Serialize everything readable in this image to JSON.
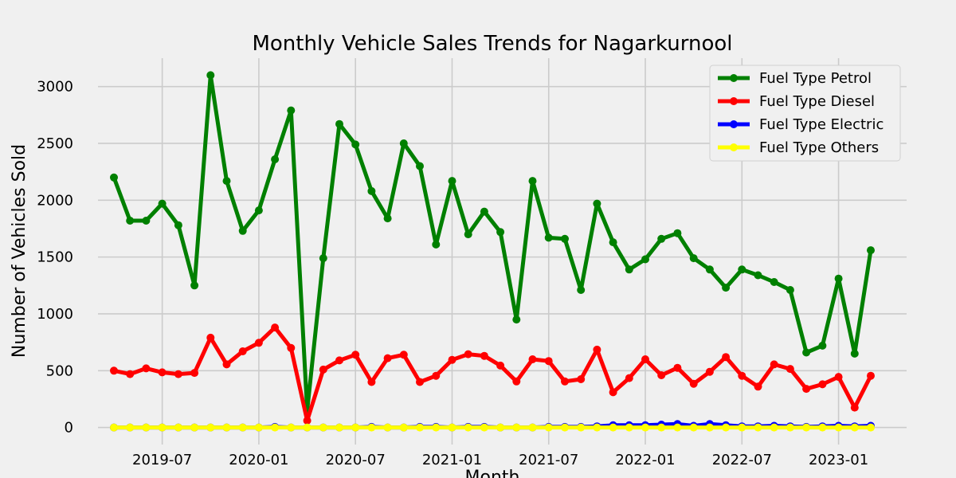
{
  "chart_data": {
    "type": "line",
    "title": "Monthly Vehicle Sales Trends for Nagarkurnool",
    "xlabel": "Month",
    "ylabel": "Number of Vehicles Sold",
    "ylim": [
      -150,
      3250
    ],
    "yticks": [
      0,
      500,
      1000,
      1500,
      2000,
      2500,
      3000
    ],
    "xticks": [
      "2019-07",
      "2020-01",
      "2020-07",
      "2021-01",
      "2021-07",
      "2022-01",
      "2022-07",
      "2023-01"
    ],
    "grid": true,
    "legend_position": "top-right",
    "x": [
      "2019-04",
      "2019-05",
      "2019-06",
      "2019-07",
      "2019-08",
      "2019-09",
      "2019-10",
      "2019-11",
      "2019-12",
      "2020-01",
      "2020-02",
      "2020-03",
      "2020-04",
      "2020-05",
      "2020-06",
      "2020-07",
      "2020-08",
      "2020-09",
      "2020-10",
      "2020-11",
      "2020-12",
      "2021-01",
      "2021-02",
      "2021-03",
      "2021-04",
      "2021-05",
      "2021-06",
      "2021-07",
      "2021-08",
      "2021-09",
      "2021-10",
      "2021-11",
      "2021-12",
      "2022-01",
      "2022-02",
      "2022-03",
      "2022-04",
      "2022-05",
      "2022-06",
      "2022-07",
      "2022-08",
      "2022-09",
      "2022-10",
      "2022-11",
      "2022-12",
      "2023-01",
      "2023-02",
      "2023-03"
    ],
    "series": [
      {
        "name": "Fuel Type Petrol",
        "color": "#008000",
        "values": [
          2200,
          1820,
          1820,
          1970,
          1780,
          1250,
          3100,
          2170,
          1730,
          1910,
          2360,
          2790,
          150,
          1490,
          2670,
          2490,
          2080,
          1840,
          2500,
          2300,
          1610,
          2170,
          1700,
          1900,
          1720,
          950,
          2170,
          1670,
          1660,
          1210,
          1970,
          1630,
          1390,
          1480,
          1660,
          1710,
          1490,
          1390,
          1230,
          1390,
          1340,
          1280,
          1210,
          660,
          720,
          1310,
          650,
          1560
        ]
      },
      {
        "name": "Fuel Type Diesel",
        "color": "#ff0000",
        "values": [
          500,
          470,
          520,
          485,
          470,
          480,
          790,
          555,
          670,
          745,
          880,
          700,
          60,
          510,
          590,
          640,
          400,
          610,
          640,
          400,
          455,
          595,
          645,
          630,
          545,
          405,
          600,
          585,
          405,
          425,
          685,
          310,
          435,
          600,
          460,
          525,
          385,
          490,
          620,
          455,
          360,
          555,
          515,
          340,
          380,
          445,
          175,
          455
        ]
      },
      {
        "name": "Fuel Type Electric",
        "color": "#0000ff",
        "values": [
          0,
          0,
          0,
          0,
          0,
          0,
          0,
          0,
          0,
          0,
          5,
          0,
          0,
          0,
          0,
          0,
          5,
          0,
          0,
          5,
          5,
          0,
          5,
          5,
          0,
          0,
          0,
          5,
          5,
          5,
          10,
          20,
          20,
          20,
          25,
          30,
          15,
          30,
          20,
          10,
          10,
          15,
          10,
          5,
          10,
          15,
          10,
          15
        ]
      },
      {
        "name": "Fuel Type Others",
        "color": "#ffff00",
        "values": [
          0,
          0,
          0,
          0,
          0,
          0,
          0,
          0,
          0,
          0,
          0,
          0,
          0,
          0,
          0,
          0,
          0,
          0,
          0,
          0,
          0,
          0,
          0,
          0,
          0,
          0,
          0,
          0,
          0,
          0,
          0,
          0,
          0,
          0,
          0,
          0,
          0,
          0,
          0,
          0,
          0,
          0,
          0,
          0,
          0,
          0,
          0,
          0
        ]
      }
    ]
  }
}
